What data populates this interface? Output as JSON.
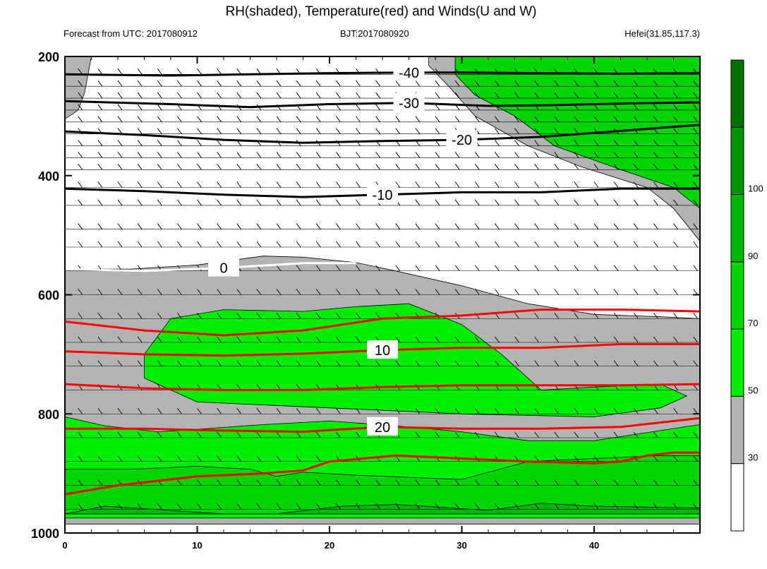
{
  "header": {
    "title": "RH(shaded), Temperature(red) and Winds(U and W)",
    "left": "Forecast from UTC: 2017080912",
    "center": "BJT:2017080920",
    "right": "Hefei(31.85,117.3)"
  },
  "chart_data": {
    "type": "heatmap",
    "title": "RH(shaded), Temperature(red) and Winds(U and W)",
    "xlim": [
      0,
      48
    ],
    "ylim": [
      1000,
      200
    ],
    "x_ticks": [
      0,
      10,
      20,
      30,
      40
    ],
    "y_ticks": [
      200,
      400,
      600,
      800,
      1000
    ],
    "colorbar": {
      "levels": [
        30,
        50,
        70,
        90,
        100
      ],
      "bin_colors": [
        "#ffffff",
        "#b3b3b3",
        "#00ee00",
        "#00d500",
        "#00b600",
        "#009400",
        "#007000"
      ]
    },
    "rh_regions": [
      {
        "fill": "#b3b3b3",
        "points": [
          [
            0,
            557
          ],
          [
            5,
            557
          ],
          [
            10,
            550
          ],
          [
            15,
            535
          ],
          [
            18,
            537
          ],
          [
            22,
            546
          ],
          [
            25,
            560
          ],
          [
            30,
            585
          ],
          [
            35,
            615
          ],
          [
            40,
            633
          ],
          [
            45,
            637
          ],
          [
            48,
            640
          ],
          [
            48,
            985
          ],
          [
            0,
            985
          ]
        ]
      },
      {
        "fill": "#00ee00",
        "points": [
          [
            0,
            805
          ],
          [
            3,
            820
          ],
          [
            7,
            830
          ],
          [
            10,
            826
          ],
          [
            15,
            818
          ],
          [
            20,
            812
          ],
          [
            25,
            820
          ],
          [
            30,
            830
          ],
          [
            35,
            845
          ],
          [
            40,
            845
          ],
          [
            45,
            828
          ],
          [
            48,
            818
          ],
          [
            48,
            975
          ],
          [
            0,
            975
          ]
        ]
      },
      {
        "fill": "#00ee00",
        "points": [
          [
            6,
            700
          ],
          [
            8,
            640
          ],
          [
            12,
            625
          ],
          [
            18,
            628
          ],
          [
            22,
            620
          ],
          [
            26,
            615
          ],
          [
            30,
            650
          ],
          [
            33,
            700
          ],
          [
            36,
            760
          ],
          [
            40,
            755
          ],
          [
            45,
            750
          ],
          [
            47,
            770
          ],
          [
            45,
            790
          ],
          [
            40,
            805
          ],
          [
            30,
            800
          ],
          [
            20,
            790
          ],
          [
            10,
            780
          ],
          [
            6,
            740
          ]
        ]
      },
      {
        "fill": "#00d500",
        "points": [
          [
            0,
            893
          ],
          [
            5,
            893
          ],
          [
            10,
            888
          ],
          [
            14,
            893
          ],
          [
            16,
            905
          ],
          [
            18,
            898
          ],
          [
            22,
            903
          ],
          [
            30,
            910
          ],
          [
            35,
            880
          ],
          [
            40,
            875
          ],
          [
            45,
            870
          ],
          [
            48,
            870
          ],
          [
            48,
            968
          ],
          [
            0,
            968
          ]
        ]
      },
      {
        "fill": "#00b600",
        "points": [
          [
            3,
            955
          ],
          [
            8,
            962
          ],
          [
            12,
            968
          ],
          [
            16,
            968
          ],
          [
            17,
            965
          ],
          [
            21,
            955
          ],
          [
            25,
            952
          ],
          [
            32,
            962
          ],
          [
            36,
            950
          ],
          [
            40,
            955
          ],
          [
            48,
            958
          ],
          [
            48,
            968
          ],
          [
            0,
            968
          ]
        ]
      },
      {
        "fill": "#b3b3b3",
        "points": [
          [
            0,
            200
          ],
          [
            2,
            200
          ],
          [
            1.5,
            260
          ],
          [
            1,
            290
          ],
          [
            0,
            305
          ]
        ]
      },
      {
        "fill": "#b3b3b3",
        "points": [
          [
            27.5,
            200
          ],
          [
            48,
            200
          ],
          [
            48,
            510
          ],
          [
            46,
            455
          ],
          [
            44,
            420
          ],
          [
            39,
            385
          ],
          [
            35,
            350
          ],
          [
            31,
            300
          ],
          [
            29,
            250
          ],
          [
            27.5,
            215
          ]
        ]
      },
      {
        "fill": "#00d500",
        "points": [
          [
            29.5,
            200
          ],
          [
            48,
            200
          ],
          [
            48,
            455
          ],
          [
            46,
            420
          ],
          [
            42,
            390
          ],
          [
            37,
            350
          ],
          [
            34,
            300
          ],
          [
            31,
            265
          ],
          [
            29.5,
            230
          ]
        ]
      }
    ],
    "temperature_contours": [
      {
        "label": "-40",
        "color": "#000000",
        "points": [
          [
            0,
            230
          ],
          [
            8,
            232
          ],
          [
            14,
            230
          ],
          [
            20,
            228
          ],
          [
            26,
            227
          ],
          [
            30,
            227
          ],
          [
            36,
            228
          ],
          [
            42,
            229
          ],
          [
            48,
            228
          ]
        ]
      },
      {
        "label": "-30",
        "color": "#000000",
        "points": [
          [
            0,
            275
          ],
          [
            8,
            280
          ],
          [
            14,
            285
          ],
          [
            20,
            280
          ],
          [
            26,
            278
          ],
          [
            32,
            283
          ],
          [
            36,
            282
          ],
          [
            42,
            279
          ],
          [
            48,
            277
          ]
        ]
      },
      {
        "label": "-20",
        "color": "#000000",
        "points": [
          [
            0,
            326
          ],
          [
            6,
            332
          ],
          [
            12,
            340
          ],
          [
            18,
            345
          ],
          [
            24,
            342
          ],
          [
            30,
            340
          ],
          [
            36,
            335
          ],
          [
            42,
            325
          ],
          [
            46,
            318
          ],
          [
            48,
            315
          ]
        ]
      },
      {
        "label": "-10",
        "color": "#000000",
        "points": [
          [
            0,
            422
          ],
          [
            6,
            426
          ],
          [
            12,
            432
          ],
          [
            18,
            436
          ],
          [
            24,
            432
          ],
          [
            30,
            428
          ],
          [
            36,
            428
          ],
          [
            42,
            422
          ],
          [
            48,
            422
          ]
        ]
      },
      {
        "label": "0",
        "color": "#ffffff",
        "points": [
          [
            0,
            557
          ],
          [
            6,
            560
          ],
          [
            12,
            555
          ],
          [
            18,
            547
          ],
          [
            22,
            547
          ]
        ]
      },
      {
        "label": "",
        "color": "#ff0000",
        "points": [
          [
            0,
            645
          ],
          [
            6,
            660
          ],
          [
            12,
            668
          ],
          [
            18,
            660
          ],
          [
            24,
            640
          ],
          [
            30,
            635
          ],
          [
            36,
            625
          ],
          [
            42,
            625
          ],
          [
            48,
            628
          ]
        ]
      },
      {
        "label": "10",
        "color": "#ff0000",
        "points": [
          [
            0,
            695
          ],
          [
            6,
            700
          ],
          [
            12,
            702
          ],
          [
            18,
            699
          ],
          [
            24,
            693
          ],
          [
            30,
            689
          ],
          [
            36,
            689
          ],
          [
            42,
            683
          ],
          [
            48,
            683
          ]
        ]
      },
      {
        "label": "",
        "color": "#ff0000",
        "points": [
          [
            0,
            750
          ],
          [
            6,
            757
          ],
          [
            12,
            760
          ],
          [
            18,
            760
          ],
          [
            24,
            755
          ],
          [
            30,
            752
          ],
          [
            36,
            752
          ],
          [
            42,
            752
          ],
          [
            48,
            750
          ]
        ]
      },
      {
        "label": "20",
        "color": "#ff0000",
        "points": [
          [
            0,
            825
          ],
          [
            6,
            825
          ],
          [
            12,
            828
          ],
          [
            18,
            830
          ],
          [
            24,
            822
          ],
          [
            30,
            825
          ],
          [
            36,
            825
          ],
          [
            42,
            822
          ],
          [
            48,
            807
          ]
        ]
      },
      {
        "label": "",
        "color": "#ff0000",
        "points": [
          [
            0,
            935
          ],
          [
            4,
            920
          ],
          [
            10,
            905
          ],
          [
            15,
            900
          ],
          [
            18,
            895
          ],
          [
            20,
            880
          ],
          [
            25,
            870
          ],
          [
            30,
            875
          ],
          [
            35,
            880
          ],
          [
            40,
            883
          ],
          [
            42,
            880
          ],
          [
            44,
            870
          ],
          [
            46,
            865
          ],
          [
            48,
            865
          ]
        ]
      }
    ],
    "wind_rows": [
      230,
      250,
      270,
      290,
      310,
      330,
      350,
      370,
      390,
      420,
      450,
      490,
      520,
      560,
      600,
      640,
      680,
      720,
      760,
      800,
      840,
      880,
      920,
      960
    ]
  },
  "colors": {
    "grey": "#b3b3b3",
    "green_light": "#00ee00",
    "green_mid": "#00d500",
    "green_dark": "#00b600",
    "red": "#ff0000"
  }
}
